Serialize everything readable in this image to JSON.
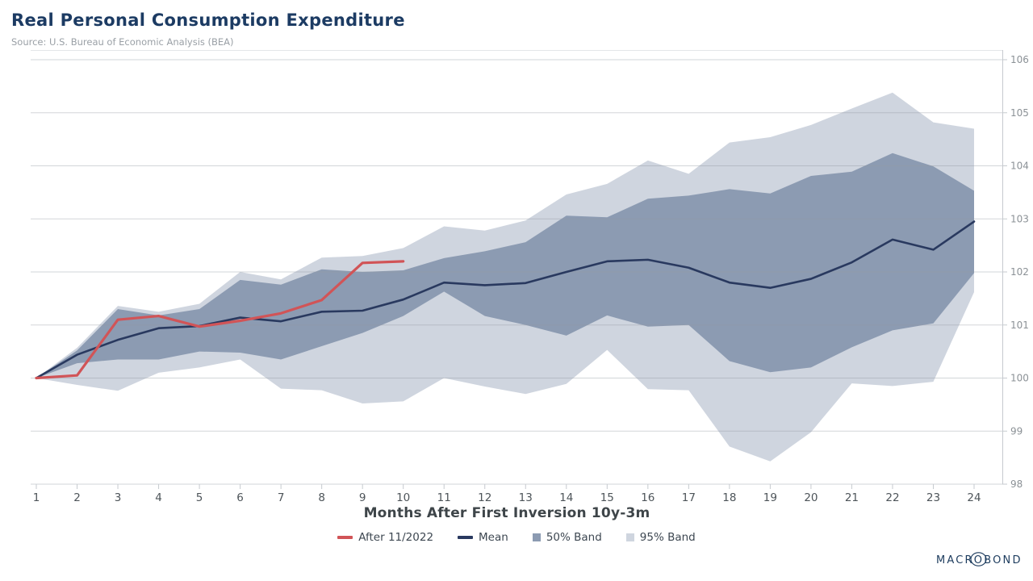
{
  "header": {
    "title": "Real Personal Consumption Expenditure",
    "subtitle": "Source: U.S. Bureau of Economic Analysis (BEA)"
  },
  "chart_data": {
    "type": "line",
    "title": "Real Personal Consumption Expenditure",
    "xlabel": "Months After First Inversion 10y-3m",
    "ylabel": "",
    "ylim": [
      98,
      106
    ],
    "yticks": [
      98,
      99,
      100,
      101,
      102,
      103,
      104,
      105,
      106
    ],
    "xticks": [
      1,
      2,
      3,
      4,
      5,
      6,
      7,
      8,
      9,
      10,
      11,
      12,
      13,
      14,
      15,
      16,
      17,
      18,
      19,
      20,
      21,
      22,
      23,
      24
    ],
    "x": [
      1,
      2,
      3,
      4,
      5,
      6,
      7,
      8,
      9,
      10,
      11,
      12,
      13,
      14,
      15,
      16,
      17,
      18,
      19,
      20,
      21,
      22,
      23,
      24
    ],
    "grid": true,
    "legend_position": "bottom",
    "series": [
      {
        "name": "95% Band",
        "type": "band",
        "color": "#cfd5df",
        "upper": [
          100.0,
          100.57,
          101.36,
          101.25,
          101.4,
          102.0,
          101.86,
          102.27,
          102.3,
          102.45,
          102.86,
          102.78,
          102.97,
          103.46,
          103.66,
          104.1,
          103.85,
          104.44,
          104.54,
          104.77,
          105.08,
          105.38,
          104.82,
          104.7
        ],
        "lower": [
          100.0,
          99.87,
          99.76,
          100.1,
          100.2,
          100.35,
          99.8,
          99.77,
          99.52,
          99.56,
          100.0,
          99.84,
          99.7,
          99.89,
          100.53,
          99.79,
          99.77,
          98.71,
          98.43,
          98.98,
          99.9,
          99.85,
          99.93,
          101.62
        ]
      },
      {
        "name": "50% Band",
        "type": "band",
        "color": "#8c9bb2",
        "upper": [
          100.0,
          100.52,
          101.3,
          101.18,
          101.3,
          101.85,
          101.76,
          102.05,
          102.0,
          102.03,
          102.26,
          102.39,
          102.56,
          103.06,
          103.03,
          103.38,
          103.44,
          103.56,
          103.48,
          103.81,
          103.89,
          104.24,
          103.99,
          103.53
        ],
        "lower": [
          100.0,
          100.28,
          100.35,
          100.35,
          100.5,
          100.48,
          100.35,
          100.6,
          100.85,
          101.17,
          101.63,
          101.17,
          101.0,
          100.8,
          101.18,
          100.97,
          101.0,
          100.32,
          100.11,
          100.2,
          100.58,
          100.9,
          101.03,
          101.98
        ]
      },
      {
        "name": "Mean",
        "type": "line",
        "color": "#29395f",
        "width": 2.6,
        "values": [
          100.0,
          100.44,
          100.72,
          100.94,
          100.98,
          101.14,
          101.07,
          101.25,
          101.27,
          101.48,
          101.8,
          101.75,
          101.79,
          102.0,
          102.2,
          102.23,
          102.08,
          101.8,
          101.7,
          101.87,
          102.18,
          102.61,
          102.42,
          102.95
        ]
      },
      {
        "name": "After 11/2022",
        "type": "line",
        "color": "#d15457",
        "width": 3.2,
        "values": [
          100.0,
          100.05,
          101.1,
          101.17,
          100.97,
          101.08,
          101.22,
          101.47,
          102.17,
          102.2
        ]
      }
    ]
  },
  "legend": {
    "items": [
      {
        "label": "After 11/2022",
        "swatch": "line",
        "color": "#d15457"
      },
      {
        "label": "Mean",
        "swatch": "line",
        "color": "#29395f"
      },
      {
        "label": "50% Band",
        "swatch": "square",
        "color": "#8c9bb2"
      },
      {
        "label": "95% Band",
        "swatch": "square",
        "color": "#cfd5df"
      }
    ]
  },
  "branding": {
    "logo_text": "MACROBOND",
    "logo_color": "#1d3c5e"
  },
  "colors": {
    "title": "#1c3b63",
    "subtitle": "#9aa0a6",
    "grid": "#d9dce1",
    "axis": "#c6cacf",
    "y_tick_label": "#8b9196",
    "x_tick_label": "#4d5459",
    "x_axis_title": "#3e4549",
    "legend_label": "#3d4751"
  }
}
